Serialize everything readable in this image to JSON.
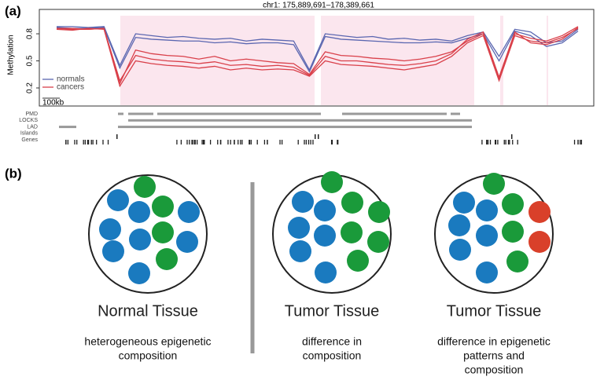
{
  "panel_labels": [
    "(a)",
    "(b)"
  ],
  "chart_data": {
    "type": "line",
    "title": "chr1: 175,889,691–178,389,661",
    "y_label": "Methylation",
    "ylim": [
      0,
      1.07
    ],
    "yticks": [
      0.2,
      0.5,
      0.8
    ],
    "legend": "bottom-left",
    "series": [
      {
        "name": "normals",
        "color": "#5a66b0",
        "values": [
          [
            0.88,
            0.88,
            0.87,
            0.88,
            0.45,
            0.8,
            0.78,
            0.76,
            0.77,
            0.75,
            0.74,
            0.75,
            0.72,
            0.74,
            0.73,
            0.72,
            0.4,
            0.8,
            0.78,
            0.76,
            0.77,
            0.74,
            0.75,
            0.73,
            0.74,
            0.72,
            0.78,
            0.82,
            0.55,
            0.85,
            0.82,
            0.7,
            0.72,
            0.85
          ],
          [
            0.87,
            0.86,
            0.86,
            0.87,
            0.42,
            0.76,
            0.74,
            0.73,
            0.72,
            0.72,
            0.7,
            0.71,
            0.69,
            0.7,
            0.7,
            0.68,
            0.38,
            0.77,
            0.74,
            0.73,
            0.72,
            0.71,
            0.7,
            0.7,
            0.71,
            0.7,
            0.75,
            0.8,
            0.5,
            0.83,
            0.78,
            0.66,
            0.7,
            0.83
          ]
        ]
      },
      {
        "name": "cancers",
        "color": "#d9404a",
        "values": [
          [
            0.86,
            0.86,
            0.85,
            0.86,
            0.25,
            0.62,
            0.58,
            0.56,
            0.55,
            0.52,
            0.55,
            0.5,
            0.52,
            0.5,
            0.48,
            0.47,
            0.35,
            0.6,
            0.56,
            0.55,
            0.53,
            0.52,
            0.5,
            0.52,
            0.55,
            0.6,
            0.72,
            0.8,
            0.3,
            0.8,
            0.75,
            0.72,
            0.78,
            0.88
          ],
          [
            0.85,
            0.84,
            0.86,
            0.85,
            0.22,
            0.5,
            0.47,
            0.45,
            0.44,
            0.42,
            0.44,
            0.4,
            0.42,
            0.4,
            0.41,
            0.4,
            0.33,
            0.5,
            0.46,
            0.45,
            0.44,
            0.42,
            0.4,
            0.43,
            0.46,
            0.55,
            0.7,
            0.78,
            0.28,
            0.78,
            0.72,
            0.7,
            0.76,
            0.86
          ],
          [
            0.86,
            0.85,
            0.85,
            0.86,
            0.28,
            0.56,
            0.52,
            0.5,
            0.49,
            0.47,
            0.49,
            0.45,
            0.46,
            0.44,
            0.45,
            0.43,
            0.34,
            0.55,
            0.5,
            0.5,
            0.48,
            0.46,
            0.45,
            0.47,
            0.5,
            0.58,
            0.74,
            0.82,
            0.32,
            0.82,
            0.7,
            0.68,
            0.74,
            0.87
          ]
        ]
      }
    ]
  },
  "scale_bar": "100kb",
  "tracks": [
    "PMD",
    "LOCKS",
    "LAD",
    "Islands",
    "Genes"
  ],
  "diagram": {
    "panels": [
      {
        "title": "Normal Tissue",
        "description": [
          "heterogeneous epigenetic",
          "composition"
        ]
      },
      {
        "title": "Tumor Tissue",
        "description": [
          "difference in",
          "composition"
        ]
      },
      {
        "title": "Tumor Tissue",
        "description": [
          "difference in epigenetic",
          "patterns and",
          "composition"
        ]
      }
    ]
  }
}
